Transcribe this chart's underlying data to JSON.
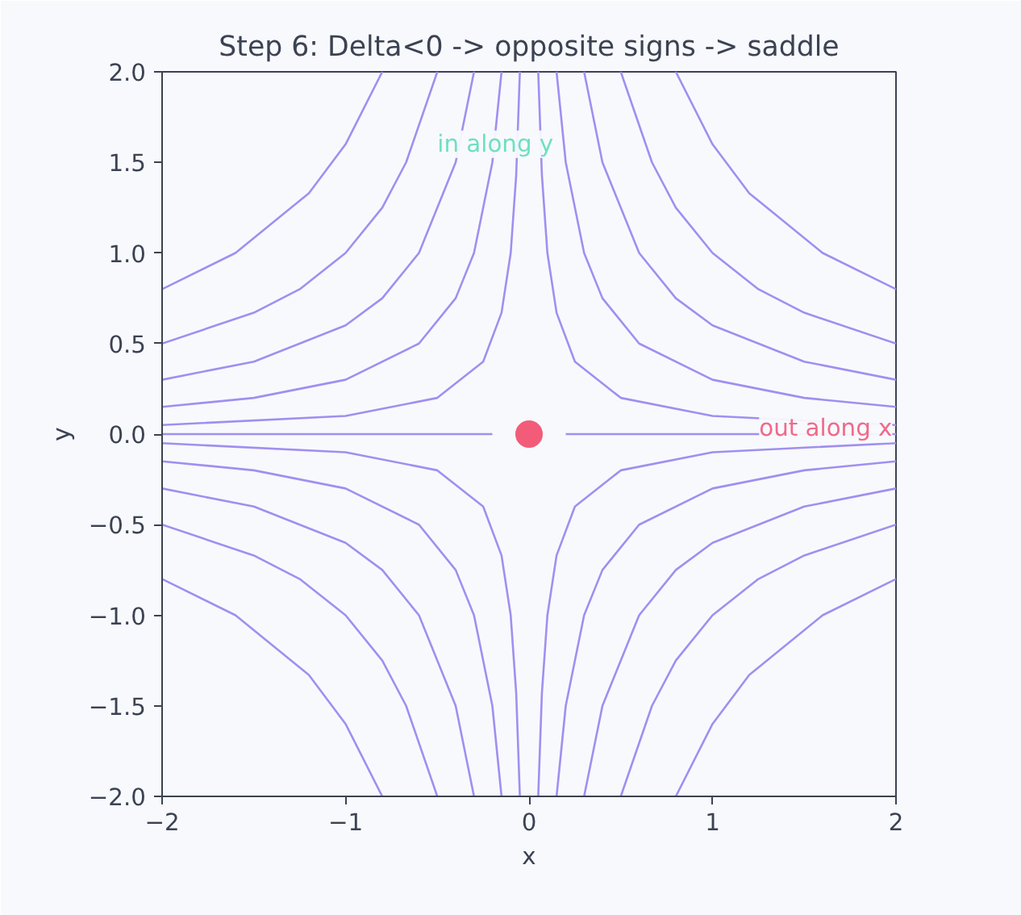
{
  "chart_data": {
    "type": "line",
    "title": "Step 6: Delta<0 -> opposite signs -> saddle",
    "xlabel": "x",
    "ylabel": "y",
    "xlim": [
      -2,
      2
    ],
    "ylim": [
      -2,
      2
    ],
    "xticks": [
      {
        "value": -2,
        "label": "−2"
      },
      {
        "value": -1,
        "label": "−1"
      },
      0,
      1,
      2
    ],
    "yticks": [
      {
        "value": -2,
        "label": "−2.0"
      },
      {
        "value": -1.5,
        "label": "−1.5"
      },
      {
        "value": -1,
        "label": "−1.0"
      },
      {
        "value": -0.5,
        "label": "−0.5"
      },
      {
        "value": 0,
        "label": "0.0"
      },
      {
        "value": 0.5,
        "label": "0.5"
      },
      {
        "value": 1,
        "label": "1.0"
      },
      {
        "value": 1.5,
        "label": "1.5"
      },
      {
        "value": 2,
        "label": "2.0"
      }
    ],
    "grid": false,
    "marker": "none",
    "line_style": "solid",
    "annotations": [
      "in along y",
      "out along x"
    ],
    "series": [
      {
        "color": "#a08ff0",
        "x": [
          0.05,
          0.07,
          0.1,
          0.15,
          0.25,
          0.5,
          1,
          2
        ],
        "values": [
          2,
          1.43,
          1,
          0.67,
          0.4,
          0.2,
          0.1,
          0.05
        ]
      },
      {
        "color": "#a08ff0",
        "x": [
          0.15,
          0.2,
          0.3,
          0.4,
          0.6,
          1,
          1.5,
          2
        ],
        "values": [
          2,
          1.5,
          1,
          0.75,
          0.5,
          0.3,
          0.2,
          0.15
        ]
      },
      {
        "color": "#a08ff0",
        "x": [
          0.3,
          0.4,
          0.6,
          0.8,
          1,
          1.5,
          2
        ],
        "values": [
          2,
          1.5,
          1,
          0.75,
          0.6,
          0.4,
          0.3
        ]
      },
      {
        "color": "#a08ff0",
        "x": [
          0.5,
          0.67,
          0.8,
          1,
          1.25,
          1.5,
          2
        ],
        "values": [
          2,
          1.5,
          1.25,
          1,
          0.8,
          0.67,
          0.5
        ]
      },
      {
        "color": "#a08ff0",
        "x": [
          0.8,
          1,
          1.2,
          1.6,
          2
        ],
        "values": [
          2,
          1.6,
          1.33,
          1,
          0.8
        ]
      },
      {
        "color": "#a08ff0",
        "x": [
          -0.05,
          -0.07,
          -0.1,
          -0.15,
          -0.25,
          -0.5,
          -1,
          -2
        ],
        "values": [
          2,
          1.43,
          1,
          0.67,
          0.4,
          0.2,
          0.1,
          0.05
        ]
      },
      {
        "color": "#a08ff0",
        "x": [
          -0.15,
          -0.2,
          -0.3,
          -0.4,
          -0.6,
          -1,
          -1.5,
          -2
        ],
        "values": [
          2,
          1.5,
          1,
          0.75,
          0.5,
          0.3,
          0.2,
          0.15
        ]
      },
      {
        "color": "#a08ff0",
        "x": [
          -0.3,
          -0.4,
          -0.6,
          -0.8,
          -1,
          -1.5,
          -2
        ],
        "values": [
          2,
          1.5,
          1,
          0.75,
          0.6,
          0.4,
          0.3
        ]
      },
      {
        "color": "#a08ff0",
        "x": [
          -0.5,
          -0.67,
          -0.8,
          -1,
          -1.25,
          -1.5,
          -2
        ],
        "values": [
          2,
          1.5,
          1.25,
          1,
          0.8,
          0.67,
          0.5
        ]
      },
      {
        "color": "#a08ff0",
        "x": [
          -0.8,
          -1,
          -1.2,
          -1.6,
          -2
        ],
        "values": [
          2,
          1.6,
          1.33,
          1,
          0.8
        ]
      },
      {
        "color": "#a08ff0",
        "x": [
          -0.05,
          -0.07,
          -0.1,
          -0.15,
          -0.25,
          -0.5,
          -1,
          -2
        ],
        "values": [
          -2,
          -1.43,
          -1,
          -0.67,
          -0.4,
          -0.2,
          -0.1,
          -0.05
        ]
      },
      {
        "color": "#a08ff0",
        "x": [
          -0.15,
          -0.2,
          -0.3,
          -0.4,
          -0.6,
          -1,
          -1.5,
          -2
        ],
        "values": [
          -2,
          -1.5,
          -1,
          -0.75,
          -0.5,
          -0.3,
          -0.2,
          -0.15
        ]
      },
      {
        "color": "#a08ff0",
        "x": [
          -0.3,
          -0.4,
          -0.6,
          -0.8,
          -1,
          -1.5,
          -2
        ],
        "values": [
          -2,
          -1.5,
          -1,
          -0.75,
          -0.6,
          -0.4,
          -0.3
        ]
      },
      {
        "color": "#a08ff0",
        "x": [
          -0.5,
          -0.67,
          -0.8,
          -1,
          -1.25,
          -1.5,
          -2
        ],
        "values": [
          -2,
          -1.5,
          -1.25,
          -1,
          -0.8,
          -0.67,
          -0.5
        ]
      },
      {
        "color": "#a08ff0",
        "x": [
          -0.8,
          -1,
          -1.2,
          -1.6,
          -2
        ],
        "values": [
          -2,
          -1.6,
          -1.33,
          -1,
          -0.8
        ]
      },
      {
        "color": "#a08ff0",
        "x": [
          0.05,
          0.07,
          0.1,
          0.15,
          0.25,
          0.5,
          1,
          2
        ],
        "values": [
          -2,
          -1.43,
          -1,
          -0.67,
          -0.4,
          -0.2,
          -0.1,
          -0.05
        ]
      },
      {
        "color": "#a08ff0",
        "x": [
          0.15,
          0.2,
          0.3,
          0.4,
          0.6,
          1,
          1.5,
          2
        ],
        "values": [
          -2,
          -1.5,
          -1,
          -0.75,
          -0.5,
          -0.3,
          -0.2,
          -0.15
        ]
      },
      {
        "color": "#a08ff0",
        "x": [
          0.3,
          0.4,
          0.6,
          0.8,
          1,
          1.5,
          2
        ],
        "values": [
          -2,
          -1.5,
          -1,
          -0.75,
          -0.6,
          -0.4,
          -0.3
        ]
      },
      {
        "color": "#a08ff0",
        "x": [
          0.5,
          0.67,
          0.8,
          1,
          1.25,
          1.5,
          2
        ],
        "values": [
          -2,
          -1.5,
          -1.25,
          -1,
          -0.8,
          -0.67,
          -0.5
        ]
      },
      {
        "color": "#a08ff0",
        "x": [
          0.8,
          1,
          1.2,
          1.6,
          2
        ],
        "values": [
          -2,
          -1.6,
          -1.33,
          -1,
          -0.8
        ]
      },
      {
        "color": "#a08ff0",
        "x": [
          -0.2,
          -2
        ],
        "values": [
          0,
          0
        ]
      },
      {
        "color": "#a08ff0",
        "x": [
          0.2,
          2
        ],
        "values": [
          0,
          0
        ]
      },
      {
        "type": "scatter",
        "marker": "circle",
        "color": "#f25c78",
        "x": [
          0
        ],
        "values": [
          0
        ]
      }
    ]
  }
}
